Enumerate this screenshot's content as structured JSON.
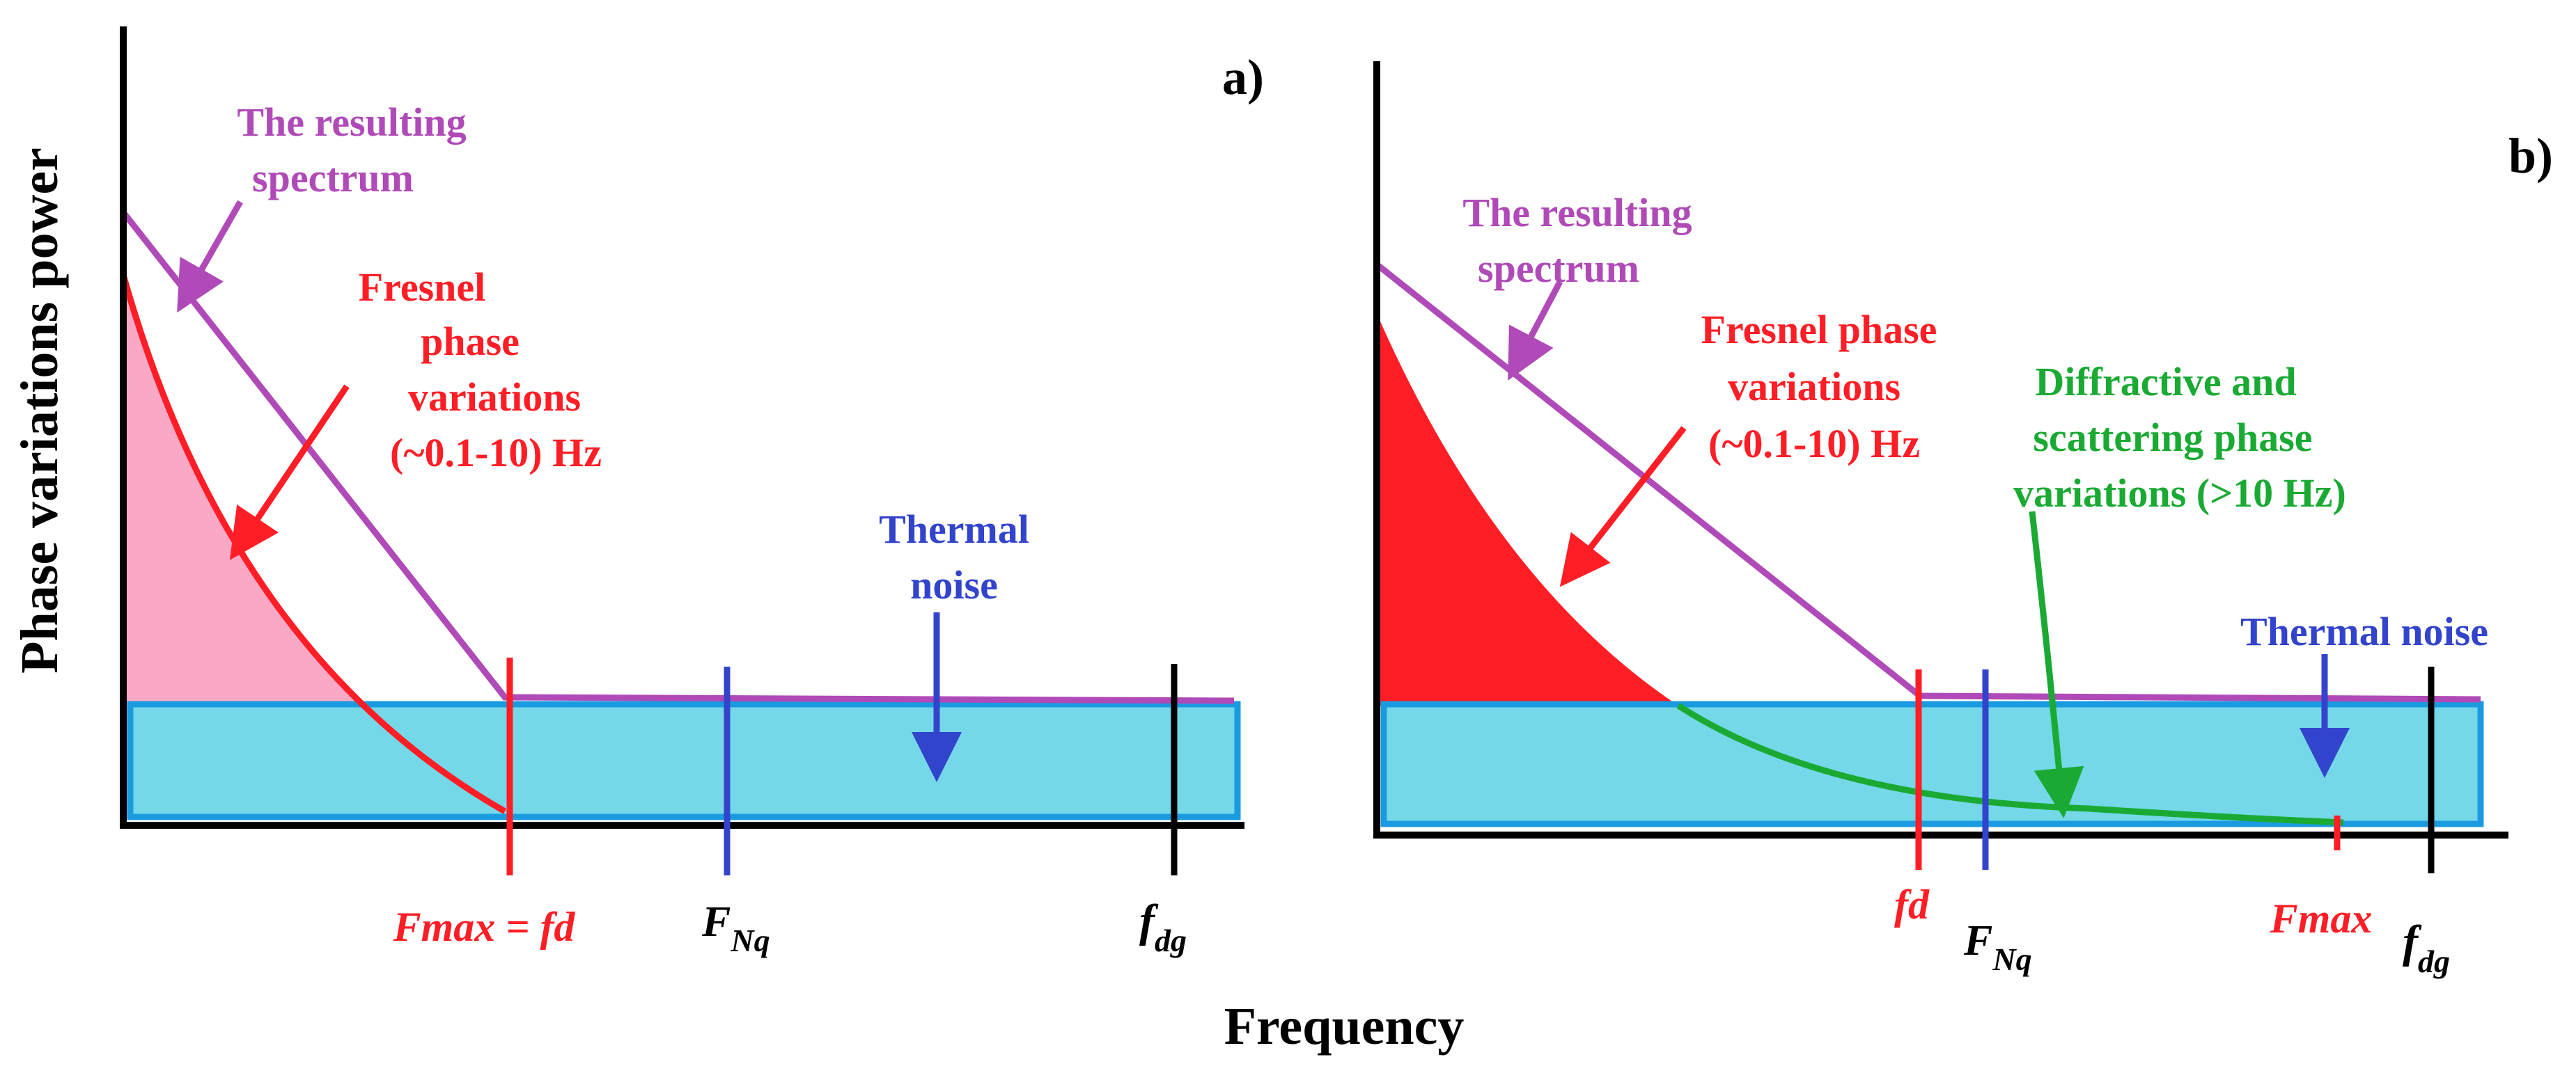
{
  "colors": {
    "spectrum": "#b04ab8",
    "fresnel": "#ff1e26",
    "fresnel_fill_a": "#f9a8c6",
    "fresnel_fill_b": "#ff1e26",
    "diffractive": "#1aaa33",
    "thermal_noise": "#3344cc",
    "noise_box_fill": "#74d8e8",
    "noise_box_stroke": "#1a9be0",
    "axis": "#000000"
  },
  "axes": {
    "y_label": "Phase variations power",
    "x_label": "Frequency"
  },
  "panel_a": {
    "tag": "a)",
    "spectrum_label_line1": "The resulting",
    "spectrum_label_line2": "spectrum",
    "fresnel_line1": "Fresnel",
    "fresnel_line2": "phase",
    "fresnel_line3": "variations",
    "fresnel_line4": "(~0.1-10) Hz",
    "thermal_line1": "Thermal",
    "thermal_line2": "noise",
    "marker_fmax_fd": "Fmax = fd",
    "marker_fnq_base": "F",
    "marker_fnq_sub": "Nq",
    "marker_fdg_base": "f",
    "marker_fdg_sub": "dg"
  },
  "panel_b": {
    "tag": "b)",
    "spectrum_label_line1": "The resulting",
    "spectrum_label_line2": "spectrum",
    "fresnel_line1": "Fresnel phase",
    "fresnel_line2": "variations",
    "fresnel_line3": "(~0.1-10) Hz",
    "diffractive_line1": "Diffractive and",
    "diffractive_line2": "scattering phase",
    "diffractive_line3": "variations (>10 Hz)",
    "thermal": "Thermal noise",
    "marker_fd": "fd",
    "marker_fnq_base": "F",
    "marker_fnq_sub": "Nq",
    "marker_fmax": "Fmax",
    "marker_fdg_base": "f",
    "marker_fdg_sub": "dg"
  }
}
